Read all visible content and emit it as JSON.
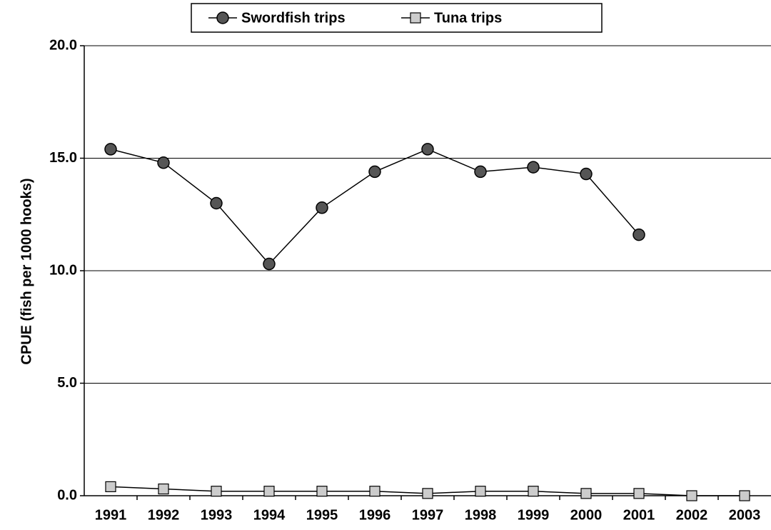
{
  "chart_data": {
    "type": "line",
    "y_label": "CPUE (fish per 1000 hooks)",
    "categories": [
      "1991",
      "1992",
      "1993",
      "1994",
      "1995",
      "1996",
      "1997",
      "1998",
      "1999",
      "2000",
      "2001",
      "2002",
      "2003"
    ],
    "series": [
      {
        "name": "Swordfish trips",
        "color": "#555555",
        "marker": "circle",
        "values": [
          15.4,
          14.8,
          13.0,
          10.3,
          12.8,
          14.4,
          15.4,
          14.4,
          14.6,
          14.3,
          11.6,
          null,
          null
        ]
      },
      {
        "name": "Tuna trips",
        "color": "#cccccc",
        "marker": "square",
        "values": [
          0.4,
          0.3,
          0.2,
          0.2,
          0.2,
          0.2,
          0.1,
          0.2,
          0.2,
          0.1,
          0.1,
          0.0,
          0.0
        ]
      }
    ],
    "ylim": [
      0,
      20
    ],
    "yticks": [
      {
        "value": 0,
        "label": "0.0"
      },
      {
        "value": 5,
        "label": "5.0"
      },
      {
        "value": 10,
        "label": "10.0"
      },
      {
        "value": 15,
        "label": "15.0"
      },
      {
        "value": 20,
        "label": "20.0"
      }
    ],
    "grid": true,
    "legend": "top"
  }
}
